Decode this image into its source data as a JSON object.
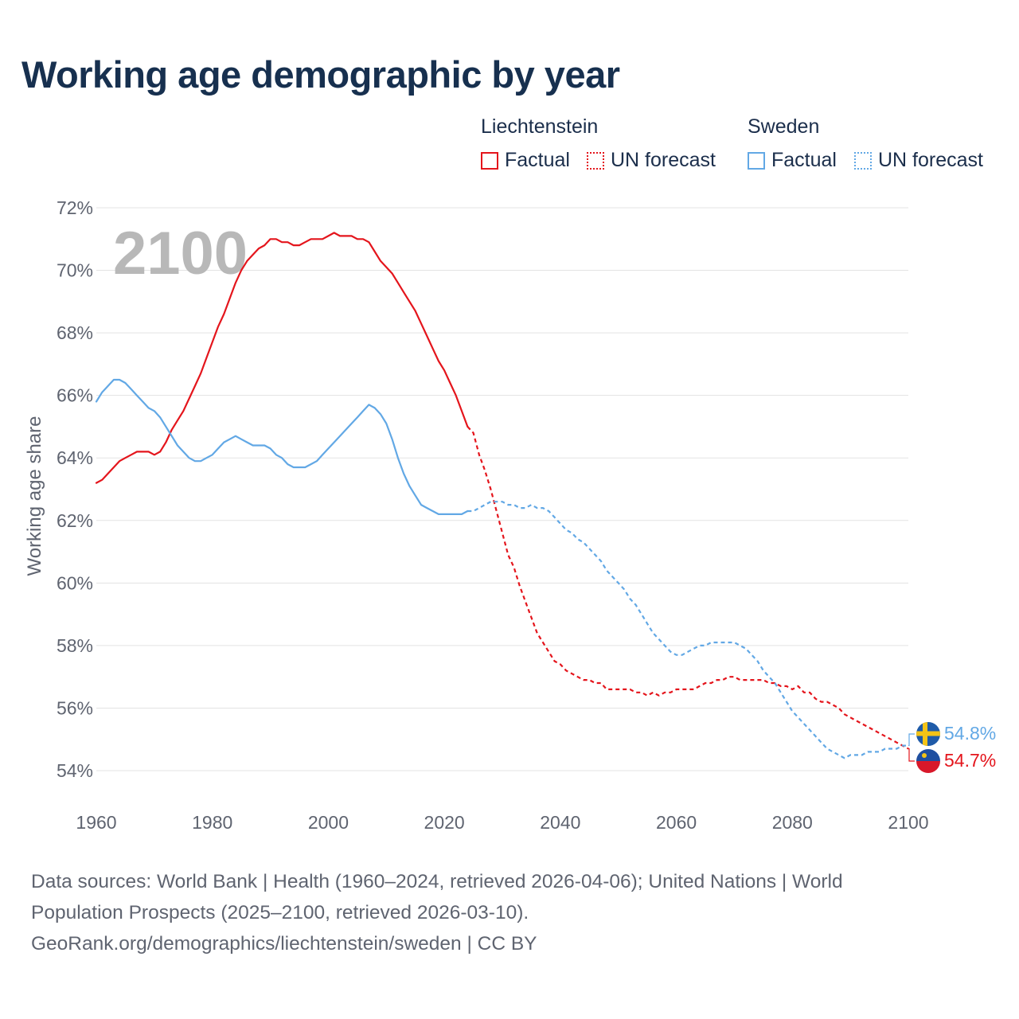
{
  "title": "Working age demographic by year",
  "legend": {
    "groups": [
      {
        "name": "Liechtenstein",
        "factual_label": "Factual",
        "forecast_label": "UN forecast",
        "color": "#e4151c"
      },
      {
        "name": "Sweden",
        "factual_label": "Factual",
        "forecast_label": "UN forecast",
        "color": "#62a8e5"
      }
    ]
  },
  "year_watermark": "2100",
  "end_labels": {
    "sweden": "54.8%",
    "liechtenstein": "54.7%"
  },
  "footer": {
    "line1": "Data sources: World Bank | Health (1960–2024, retrieved 2026-04-06); United Nations | World",
    "line2": "Population Prospects (2025–2100, retrieved 2026-03-10).",
    "line3": "GeoRank.org/demographics/liechtenstein/sweden | CC BY"
  },
  "chart_data": {
    "type": "line",
    "title": "Working age demographic by year",
    "xlabel": "",
    "ylabel": "Working age share",
    "xlim": [
      1960,
      2100
    ],
    "ylim": [
      53,
      72
    ],
    "xticks": [
      1960,
      1980,
      2000,
      2020,
      2040,
      2060,
      2080,
      2100
    ],
    "yticks": [
      54,
      56,
      58,
      60,
      62,
      64,
      66,
      68,
      70,
      72
    ],
    "ytick_format": "%",
    "factual_end_year": 2024,
    "series": [
      {
        "name": "Liechtenstein",
        "color": "#e4151c",
        "points": [
          [
            1960,
            63.2
          ],
          [
            1961,
            63.3
          ],
          [
            1962,
            63.5
          ],
          [
            1963,
            63.7
          ],
          [
            1964,
            63.9
          ],
          [
            1965,
            64.0
          ],
          [
            1966,
            64.1
          ],
          [
            1967,
            64.2
          ],
          [
            1968,
            64.2
          ],
          [
            1969,
            64.2
          ],
          [
            1970,
            64.1
          ],
          [
            1971,
            64.2
          ],
          [
            1972,
            64.5
          ],
          [
            1973,
            64.9
          ],
          [
            1974,
            65.2
          ],
          [
            1975,
            65.5
          ],
          [
            1976,
            65.9
          ],
          [
            1977,
            66.3
          ],
          [
            1978,
            66.7
          ],
          [
            1979,
            67.2
          ],
          [
            1980,
            67.7
          ],
          [
            1981,
            68.2
          ],
          [
            1982,
            68.6
          ],
          [
            1983,
            69.1
          ],
          [
            1984,
            69.6
          ],
          [
            1985,
            70.0
          ],
          [
            1986,
            70.3
          ],
          [
            1987,
            70.5
          ],
          [
            1988,
            70.7
          ],
          [
            1989,
            70.8
          ],
          [
            1990,
            71.0
          ],
          [
            1991,
            71.0
          ],
          [
            1992,
            70.9
          ],
          [
            1993,
            70.9
          ],
          [
            1994,
            70.8
          ],
          [
            1995,
            70.8
          ],
          [
            1996,
            70.9
          ],
          [
            1997,
            71.0
          ],
          [
            1998,
            71.0
          ],
          [
            1999,
            71.0
          ],
          [
            2000,
            71.1
          ],
          [
            2001,
            71.2
          ],
          [
            2002,
            71.1
          ],
          [
            2003,
            71.1
          ],
          [
            2004,
            71.1
          ],
          [
            2005,
            71.0
          ],
          [
            2006,
            71.0
          ],
          [
            2007,
            70.9
          ],
          [
            2008,
            70.6
          ],
          [
            2009,
            70.3
          ],
          [
            2010,
            70.1
          ],
          [
            2011,
            69.9
          ],
          [
            2012,
            69.6
          ],
          [
            2013,
            69.3
          ],
          [
            2014,
            69.0
          ],
          [
            2015,
            68.7
          ],
          [
            2016,
            68.3
          ],
          [
            2017,
            67.9
          ],
          [
            2018,
            67.5
          ],
          [
            2019,
            67.1
          ],
          [
            2020,
            66.8
          ],
          [
            2021,
            66.4
          ],
          [
            2022,
            66.0
          ],
          [
            2023,
            65.5
          ],
          [
            2024,
            65.0
          ],
          [
            2025,
            64.8
          ],
          [
            2026,
            64.1
          ],
          [
            2027,
            63.6
          ],
          [
            2028,
            63.0
          ],
          [
            2029,
            62.3
          ],
          [
            2030,
            61.6
          ],
          [
            2031,
            60.9
          ],
          [
            2032,
            60.5
          ],
          [
            2033,
            59.9
          ],
          [
            2034,
            59.4
          ],
          [
            2035,
            58.9
          ],
          [
            2036,
            58.4
          ],
          [
            2037,
            58.1
          ],
          [
            2038,
            57.8
          ],
          [
            2039,
            57.5
          ],
          [
            2040,
            57.4
          ],
          [
            2041,
            57.2
          ],
          [
            2042,
            57.1
          ],
          [
            2043,
            57.0
          ],
          [
            2044,
            56.9
          ],
          [
            2045,
            56.9
          ],
          [
            2046,
            56.8
          ],
          [
            2047,
            56.8
          ],
          [
            2048,
            56.6
          ],
          [
            2049,
            56.6
          ],
          [
            2050,
            56.6
          ],
          [
            2051,
            56.6
          ],
          [
            2052,
            56.6
          ],
          [
            2053,
            56.5
          ],
          [
            2054,
            56.5
          ],
          [
            2055,
            56.4
          ],
          [
            2056,
            56.5
          ],
          [
            2057,
            56.4
          ],
          [
            2058,
            56.5
          ],
          [
            2059,
            56.5
          ],
          [
            2060,
            56.6
          ],
          [
            2061,
            56.6
          ],
          [
            2062,
            56.6
          ],
          [
            2063,
            56.6
          ],
          [
            2064,
            56.7
          ],
          [
            2065,
            56.8
          ],
          [
            2066,
            56.8
          ],
          [
            2067,
            56.9
          ],
          [
            2068,
            56.9
          ],
          [
            2069,
            57.0
          ],
          [
            2070,
            57.0
          ],
          [
            2071,
            56.9
          ],
          [
            2072,
            56.9
          ],
          [
            2073,
            56.9
          ],
          [
            2074,
            56.9
          ],
          [
            2075,
            56.9
          ],
          [
            2076,
            56.8
          ],
          [
            2077,
            56.8
          ],
          [
            2078,
            56.7
          ],
          [
            2079,
            56.7
          ],
          [
            2080,
            56.6
          ],
          [
            2081,
            56.7
          ],
          [
            2082,
            56.5
          ],
          [
            2083,
            56.5
          ],
          [
            2084,
            56.3
          ],
          [
            2085,
            56.2
          ],
          [
            2086,
            56.2
          ],
          [
            2087,
            56.1
          ],
          [
            2088,
            56.0
          ],
          [
            2089,
            55.8
          ],
          [
            2090,
            55.7
          ],
          [
            2091,
            55.6
          ],
          [
            2092,
            55.5
          ],
          [
            2093,
            55.4
          ],
          [
            2094,
            55.3
          ],
          [
            2095,
            55.2
          ],
          [
            2096,
            55.1
          ],
          [
            2097,
            55.0
          ],
          [
            2098,
            54.9
          ],
          [
            2099,
            54.8
          ],
          [
            2100,
            54.7
          ]
        ]
      },
      {
        "name": "Sweden",
        "color": "#62a8e5",
        "points": [
          [
            1960,
            65.8
          ],
          [
            1961,
            66.1
          ],
          [
            1962,
            66.3
          ],
          [
            1963,
            66.5
          ],
          [
            1964,
            66.5
          ],
          [
            1965,
            66.4
          ],
          [
            1966,
            66.2
          ],
          [
            1967,
            66.0
          ],
          [
            1968,
            65.8
          ],
          [
            1969,
            65.6
          ],
          [
            1970,
            65.5
          ],
          [
            1971,
            65.3
          ],
          [
            1972,
            65.0
          ],
          [
            1973,
            64.7
          ],
          [
            1974,
            64.4
          ],
          [
            1975,
            64.2
          ],
          [
            1976,
            64.0
          ],
          [
            1977,
            63.9
          ],
          [
            1978,
            63.9
          ],
          [
            1979,
            64.0
          ],
          [
            1980,
            64.1
          ],
          [
            1981,
            64.3
          ],
          [
            1982,
            64.5
          ],
          [
            1983,
            64.6
          ],
          [
            1984,
            64.7
          ],
          [
            1985,
            64.6
          ],
          [
            1986,
            64.5
          ],
          [
            1987,
            64.4
          ],
          [
            1988,
            64.4
          ],
          [
            1989,
            64.4
          ],
          [
            1990,
            64.3
          ],
          [
            1991,
            64.1
          ],
          [
            1992,
            64.0
          ],
          [
            1993,
            63.8
          ],
          [
            1994,
            63.7
          ],
          [
            1995,
            63.7
          ],
          [
            1996,
            63.7
          ],
          [
            1997,
            63.8
          ],
          [
            1998,
            63.9
          ],
          [
            1999,
            64.1
          ],
          [
            2000,
            64.3
          ],
          [
            2001,
            64.5
          ],
          [
            2002,
            64.7
          ],
          [
            2003,
            64.9
          ],
          [
            2004,
            65.1
          ],
          [
            2005,
            65.3
          ],
          [
            2006,
            65.5
          ],
          [
            2007,
            65.7
          ],
          [
            2008,
            65.6
          ],
          [
            2009,
            65.4
          ],
          [
            2010,
            65.1
          ],
          [
            2011,
            64.6
          ],
          [
            2012,
            64.0
          ],
          [
            2013,
            63.5
          ],
          [
            2014,
            63.1
          ],
          [
            2015,
            62.8
          ],
          [
            2016,
            62.5
          ],
          [
            2017,
            62.4
          ],
          [
            2018,
            62.3
          ],
          [
            2019,
            62.2
          ],
          [
            2020,
            62.2
          ],
          [
            2021,
            62.2
          ],
          [
            2022,
            62.2
          ],
          [
            2023,
            62.2
          ],
          [
            2024,
            62.3
          ],
          [
            2025,
            62.3
          ],
          [
            2026,
            62.4
          ],
          [
            2027,
            62.5
          ],
          [
            2028,
            62.6
          ],
          [
            2029,
            62.6
          ],
          [
            2030,
            62.6
          ],
          [
            2031,
            62.5
          ],
          [
            2032,
            62.5
          ],
          [
            2033,
            62.4
          ],
          [
            2034,
            62.4
          ],
          [
            2035,
            62.5
          ],
          [
            2036,
            62.4
          ],
          [
            2037,
            62.4
          ],
          [
            2038,
            62.3
          ],
          [
            2039,
            62.1
          ],
          [
            2040,
            61.9
          ],
          [
            2041,
            61.7
          ],
          [
            2042,
            61.6
          ],
          [
            2043,
            61.4
          ],
          [
            2044,
            61.3
          ],
          [
            2045,
            61.1
          ],
          [
            2046,
            60.9
          ],
          [
            2047,
            60.7
          ],
          [
            2048,
            60.4
          ],
          [
            2049,
            60.2
          ],
          [
            2050,
            60.0
          ],
          [
            2051,
            59.8
          ],
          [
            2052,
            59.5
          ],
          [
            2053,
            59.3
          ],
          [
            2054,
            59.0
          ],
          [
            2055,
            58.7
          ],
          [
            2056,
            58.4
          ],
          [
            2057,
            58.2
          ],
          [
            2058,
            58.0
          ],
          [
            2059,
            57.8
          ],
          [
            2060,
            57.7
          ],
          [
            2061,
            57.7
          ],
          [
            2062,
            57.8
          ],
          [
            2063,
            57.9
          ],
          [
            2064,
            58.0
          ],
          [
            2065,
            58.0
          ],
          [
            2066,
            58.1
          ],
          [
            2067,
            58.1
          ],
          [
            2068,
            58.1
          ],
          [
            2069,
            58.1
          ],
          [
            2070,
            58.1
          ],
          [
            2071,
            58.0
          ],
          [
            2072,
            57.9
          ],
          [
            2073,
            57.7
          ],
          [
            2074,
            57.5
          ],
          [
            2075,
            57.2
          ],
          [
            2076,
            57.0
          ],
          [
            2077,
            56.8
          ],
          [
            2078,
            56.5
          ],
          [
            2079,
            56.2
          ],
          [
            2080,
            55.9
          ],
          [
            2081,
            55.7
          ],
          [
            2082,
            55.5
          ],
          [
            2083,
            55.3
          ],
          [
            2084,
            55.1
          ],
          [
            2085,
            54.9
          ],
          [
            2086,
            54.7
          ],
          [
            2087,
            54.6
          ],
          [
            2088,
            54.5
          ],
          [
            2089,
            54.4
          ],
          [
            2090,
            54.5
          ],
          [
            2091,
            54.5
          ],
          [
            2092,
            54.5
          ],
          [
            2093,
            54.6
          ],
          [
            2094,
            54.6
          ],
          [
            2095,
            54.6
          ],
          [
            2096,
            54.7
          ],
          [
            2097,
            54.7
          ],
          [
            2098,
            54.7
          ],
          [
            2099,
            54.8
          ],
          [
            2100,
            54.8
          ]
        ]
      }
    ]
  }
}
